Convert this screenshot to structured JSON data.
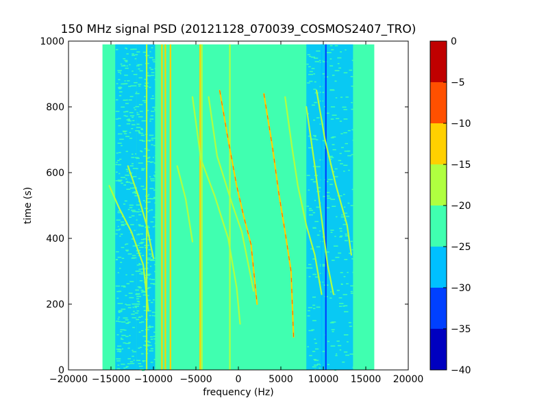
{
  "chart_data": {
    "type": "heatmap",
    "title": "150 MHz signal PSD (20121128_070039_COSMOS2407_TRO)",
    "xlabel": "frequency (Hz)",
    "ylabel": "time (s)",
    "xlim": [
      -20000,
      20000
    ],
    "ylim": [
      0,
      1000
    ],
    "x_ticks": [
      -20000,
      -15000,
      -10000,
      -5000,
      0,
      5000,
      10000,
      15000,
      20000
    ],
    "y_ticks": [
      0,
      200,
      400,
      600,
      800,
      1000
    ],
    "data_extent": {
      "x": [
        -16000,
        16000
      ],
      "y": [
        0,
        990
      ]
    },
    "grid": false,
    "background_level": -22.5,
    "colorbar": {
      "ticks": [
        0,
        -5,
        -10,
        -15,
        -20,
        -25,
        -30,
        -35,
        -40
      ],
      "levels": [
        {
          "from": -40,
          "to": -35,
          "color": "#0000c0"
        },
        {
          "from": -35,
          "to": -30,
          "color": "#0040ff"
        },
        {
          "from": -30,
          "to": -25,
          "color": "#00c0ff"
        },
        {
          "from": -25,
          "to": -20,
          "color": "#40ffb0"
        },
        {
          "from": -20,
          "to": -15,
          "color": "#b0ff40"
        },
        {
          "from": -15,
          "to": -10,
          "color": "#ffd000"
        },
        {
          "from": -10,
          "to": -5,
          "color": "#ff5000"
        },
        {
          "from": -5,
          "to": 0,
          "color": "#c00000"
        }
      ]
    },
    "low_noise_bands": [
      {
        "x0": -12000,
        "x1": -9800,
        "level": -27.5
      },
      {
        "x0": -14500,
        "x1": -12000,
        "level": -27.5
      },
      {
        "x0": 8000,
        "x1": 13500,
        "level": -27.5
      }
    ],
    "vertical_lines": [
      {
        "x": -10800,
        "level": -17.5
      },
      {
        "x": -9000,
        "level": -12.5
      },
      {
        "x": -8600,
        "level": -12.5
      },
      {
        "x": -8000,
        "level": -12.5
      },
      {
        "x": -4500,
        "level": -12.5
      },
      {
        "x": -4300,
        "level": -17.5
      },
      {
        "x": -1000,
        "level": -17.5
      },
      {
        "x": 9800,
        "level": -27.5
      },
      {
        "x": 10300,
        "level": -32.5
      }
    ],
    "doppler_traces": [
      {
        "level": -12.5,
        "points": [
          [
            -2200,
            850
          ],
          [
            -1200,
            700
          ],
          [
            -200,
            560
          ],
          [
            600,
            470
          ],
          [
            1500,
            380
          ],
          [
            2200,
            200
          ]
        ]
      },
      {
        "level": -12.5,
        "points": [
          [
            3000,
            840
          ],
          [
            4000,
            680
          ],
          [
            4800,
            530
          ],
          [
            5500,
            420
          ],
          [
            6200,
            300
          ],
          [
            6500,
            100
          ]
        ]
      },
      {
        "level": -17.5,
        "points": [
          [
            -5400,
            830
          ],
          [
            -4400,
            640
          ],
          [
            -2800,
            530
          ],
          [
            -1200,
            400
          ],
          [
            -200,
            250
          ],
          [
            200,
            140
          ]
        ]
      },
      {
        "level": -17.5,
        "points": [
          [
            -3500,
            830
          ],
          [
            -2500,
            650
          ],
          [
            -800,
            510
          ],
          [
            400,
            420
          ],
          [
            1800,
            240
          ]
        ]
      },
      {
        "level": -17.5,
        "points": [
          [
            5500,
            830
          ],
          [
            6300,
            680
          ],
          [
            7000,
            560
          ],
          [
            8000,
            440
          ],
          [
            9000,
            350
          ],
          [
            9800,
            230
          ]
        ]
      },
      {
        "level": -17.5,
        "points": [
          [
            9200,
            850
          ],
          [
            10200,
            700
          ],
          [
            11500,
            560
          ],
          [
            12800,
            440
          ],
          [
            13300,
            350
          ]
        ]
      },
      {
        "level": -17.5,
        "points": [
          [
            -15200,
            560
          ],
          [
            -14000,
            490
          ],
          [
            -12600,
            420
          ],
          [
            -11200,
            320
          ],
          [
            -10600,
            180
          ]
        ]
      },
      {
        "level": -17.5,
        "points": [
          [
            -13000,
            620
          ],
          [
            -11800,
            530
          ],
          [
            -10800,
            440
          ],
          [
            -10000,
            340
          ]
        ]
      },
      {
        "level": -17.5,
        "points": [
          [
            -7200,
            620
          ],
          [
            -6200,
            520
          ],
          [
            -5400,
            390
          ]
        ]
      },
      {
        "level": -17.5,
        "points": [
          [
            8000,
            800
          ],
          [
            9000,
            620
          ],
          [
            9700,
            480
          ],
          [
            10500,
            320
          ],
          [
            11200,
            230
          ]
        ]
      }
    ]
  }
}
